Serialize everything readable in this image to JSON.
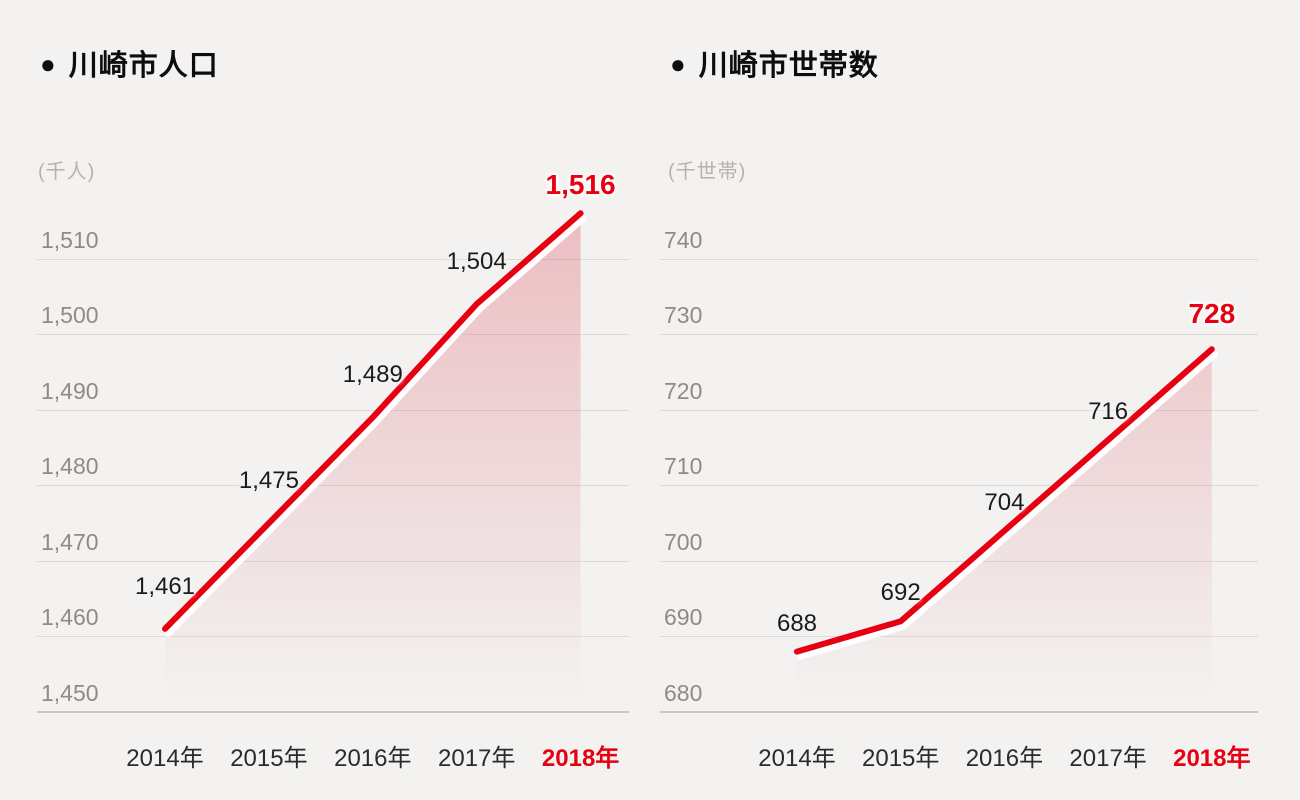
{
  "page": {
    "background_color": "#f3f2f1",
    "accent_color": "#e60012",
    "fill_base_color": "#e06e7a",
    "gridline_color": "#dbdad8",
    "baseline_color": "#c9c7c5"
  },
  "chart_data": [
    {
      "type": "line",
      "bullet": "●",
      "title": "川崎市人口",
      "unit_label": "(千人)",
      "categories": [
        "2014年",
        "2015年",
        "2016年",
        "2017年",
        "2018年"
      ],
      "values": [
        1461,
        1475,
        1489,
        1504,
        1516
      ],
      "value_labels": [
        "1,461",
        "1,475",
        "1,489",
        "1,504",
        "1,516"
      ],
      "highlight_last": true,
      "ylim": [
        1450,
        1510
      ],
      "ytick_step": 10,
      "ytick_labels": [
        "1,450",
        "1,460",
        "1,470",
        "1,480",
        "1,490",
        "1,500",
        "1,510"
      ],
      "grid": true,
      "legend": "none",
      "line_color": "#e60012"
    },
    {
      "type": "line",
      "bullet": "●",
      "title": "川崎市世帯数",
      "unit_label": "(千世帯)",
      "categories": [
        "2014年",
        "2015年",
        "2016年",
        "2017年",
        "2018年"
      ],
      "values": [
        688,
        692,
        704,
        716,
        728
      ],
      "value_labels": [
        "688",
        "692",
        "704",
        "716",
        "728"
      ],
      "highlight_last": true,
      "ylim": [
        680,
        740
      ],
      "ytick_step": 10,
      "ytick_labels": [
        "680",
        "690",
        "700",
        "710",
        "720",
        "730",
        "740"
      ],
      "grid": true,
      "legend": "none",
      "line_color": "#e60012"
    }
  ]
}
